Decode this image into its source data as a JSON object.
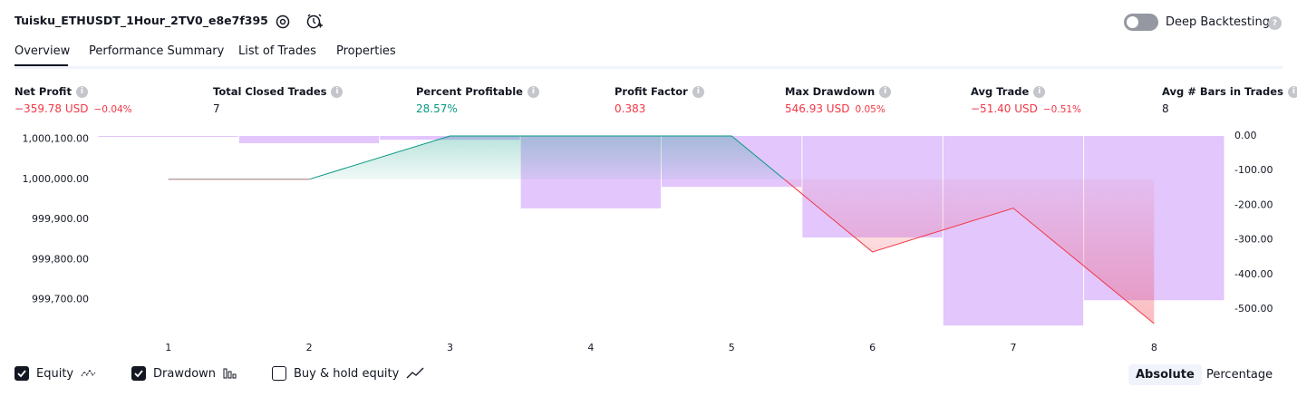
{
  "header": {
    "title": "Tuisku_ETHUSDT_1Hour_2TV0_e8e7f395",
    "deep_backtesting": "Deep Backtesting"
  },
  "tabs": [
    "Overview",
    "Performance Summary",
    "List of Trades",
    "Properties"
  ],
  "metrics": [
    {
      "label": "Net Profit",
      "value": "−359.78 USD",
      "change": "−0.04%",
      "color": "#f23645"
    },
    {
      "label": "Total Closed Trades",
      "value": "7",
      "color": "#131722"
    },
    {
      "label": "Percent Profitable",
      "value": "28.57%",
      "color": "#089981"
    },
    {
      "label": "Profit Factor",
      "value": "0.383",
      "color": "#f23645"
    },
    {
      "label": "Max Drawdown",
      "value": "546.93 USD",
      "change": "0.05%",
      "color": "#f23645"
    },
    {
      "label": "Avg Trade",
      "value": "−51.40 USD",
      "change": "−0.51%",
      "color": "#f23645"
    },
    {
      "label": "Avg # Bars in Trades",
      "value": "8",
      "color": "#131722"
    }
  ],
  "chart_data": {
    "type": "combo",
    "x": [
      1,
      2,
      3,
      4,
      5,
      6,
      7,
      8
    ],
    "xlim": [
      0.5,
      8.5
    ],
    "xticks": [
      1,
      2,
      3,
      4,
      5,
      6,
      7,
      8
    ],
    "ylim": [
      999620,
      1000108
    ],
    "yticks": [
      {
        "value": 1000100,
        "label": "1,000,100.00"
      },
      {
        "value": 1000000,
        "label": "1,000,000.00"
      },
      {
        "value": 999900,
        "label": "999,900.00"
      },
      {
        "value": 999800,
        "label": "999,800.00"
      },
      {
        "value": 999700,
        "label": "999,700.00"
      }
    ],
    "y2lim": [
      -565,
      0
    ],
    "y2ticks": [
      {
        "value": 0,
        "label": "0.00"
      },
      {
        "value": -100,
        "label": "-100.00"
      },
      {
        "value": -200,
        "label": "-200.00"
      },
      {
        "value": -300,
        "label": "-300.00"
      },
      {
        "value": -400,
        "label": "-400.00"
      },
      {
        "value": -500,
        "label": "-500.00"
      }
    ],
    "series": [
      {
        "name": "Equity",
        "color": "#089981",
        "negative_color": "#f23645",
        "visible": true,
        "values": [
          1000000,
          1000000,
          1000108,
          1000108,
          1000108,
          999819,
          999928,
          999640.22
        ]
      },
      {
        "name": "Drawdown",
        "color": "#e0c3fc",
        "axis": "y2",
        "visible": true,
        "values": [
          -2,
          -21,
          -11,
          -209,
          -147,
          -293,
          -547,
          -474
        ]
      }
    ]
  },
  "buy_hold": {
    "name": "Buy & hold equity",
    "visible": false
  },
  "modes": [
    "Absolute",
    "Percentage"
  ],
  "active_mode": 0
}
